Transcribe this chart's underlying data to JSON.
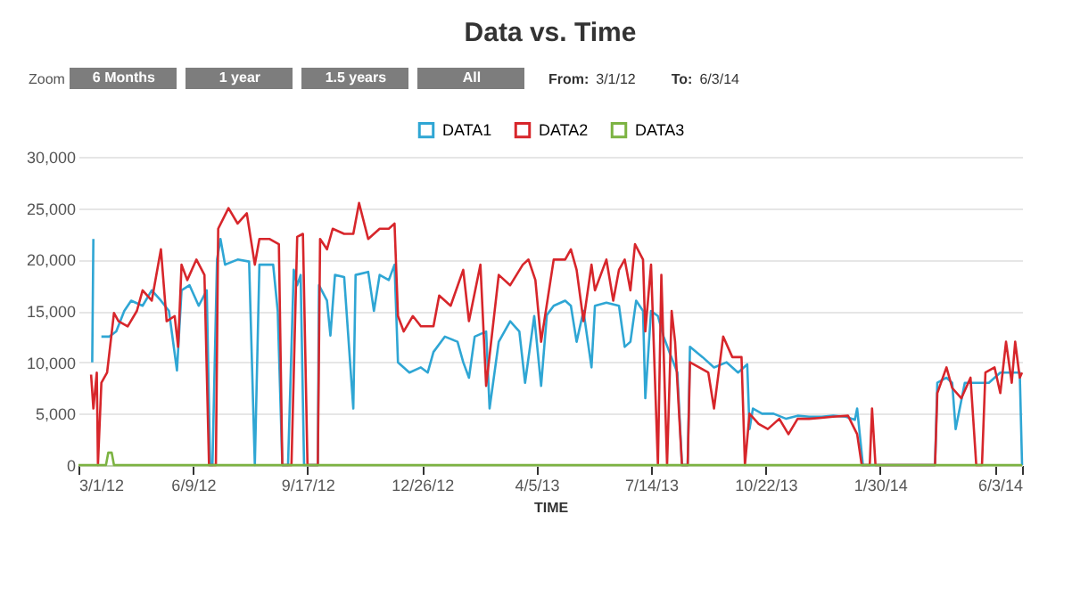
{
  "chart_data": {
    "type": "line",
    "title": "Data vs. Time",
    "xlabel": "TIME",
    "legend": "top",
    "grid": "y",
    "marker": "none",
    "line_style": "solid",
    "annotations": [
      "Zoom",
      "6 Months",
      "1 year",
      "1.5 years",
      "All",
      "From:",
      "3/1/12",
      "To:",
      "6/3/14"
    ],
    "xlim": [
      "2012-03-01",
      "2014-06-03"
    ],
    "xticks": [
      {
        "value": "2012-03-01",
        "label": "3/1/12"
      },
      {
        "value": "2012-06-09",
        "label": "6/9/12"
      },
      {
        "value": "2012-09-17",
        "label": "9/17/12"
      },
      {
        "value": "2012-12-26",
        "label": "12/26/12"
      },
      {
        "value": "2013-04-05",
        "label": "4/5/13"
      },
      {
        "value": "2013-07-14",
        "label": "7/14/13"
      },
      {
        "value": "2013-10-22",
        "label": "10/22/13"
      },
      {
        "value": "2014-01-30",
        "label": "1/30/14"
      },
      {
        "value": "2014-05-10",
        "label": null
      },
      {
        "value": "2014-06-03",
        "label": "6/3/14"
      }
    ],
    "ylim": [
      0,
      30000
    ],
    "yticks": [
      {
        "value": 0,
        "label": "0"
      },
      {
        "value": 5000,
        "label": "5,000"
      },
      {
        "value": 10000,
        "label": "10,000"
      },
      {
        "value": 15000,
        "label": "15,000"
      },
      {
        "value": 20000,
        "label": "20,000"
      },
      {
        "value": 25000,
        "label": "25,000"
      },
      {
        "value": 30000,
        "label": "30,000"
      }
    ],
    "series": [
      {
        "name": "DATA1",
        "color": "#2fa6d4",
        "x": [
          "2012-03-13",
          "2012-03-14",
          "2012-03-17",
          "2012-03-21",
          "2012-03-28",
          "2012-04-03",
          "2012-04-10",
          "2012-04-16",
          "2012-04-26",
          "2012-05-04",
          "2012-05-12",
          "2012-05-19",
          "2012-05-26",
          "2012-05-30",
          "2012-06-06",
          "2012-06-14",
          "2012-06-21",
          "2012-06-24",
          "2012-06-26",
          "2012-06-30",
          "2012-07-03",
          "2012-07-07",
          "2012-07-18",
          "2012-07-28",
          "2012-08-02",
          "2012-08-06",
          "2012-08-18",
          "2012-08-22",
          "2012-08-26",
          "2012-08-31",
          "2012-09-05",
          "2012-09-08",
          "2012-09-11",
          "2012-09-14",
          "2012-09-26",
          "2012-09-27",
          "2012-10-04",
          "2012-10-07",
          "2012-10-11",
          "2012-10-19",
          "2012-10-27",
          "2012-10-29",
          "2012-11-09",
          "2012-11-14",
          "2012-11-19",
          "2012-11-27",
          "2012-12-02",
          "2012-12-05",
          "2012-12-15",
          "2012-12-25",
          "2012-12-31",
          "2013-01-05",
          "2013-01-15",
          "2013-01-26",
          "2013-01-31",
          "2013-02-05",
          "2013-02-10",
          "2013-02-20",
          "2013-02-23",
          "2013-03-03",
          "2013-03-13",
          "2013-03-21",
          "2013-03-26",
          "2013-04-03",
          "2013-04-09",
          "2013-04-14",
          "2013-04-20",
          "2013-04-30",
          "2013-05-05",
          "2013-05-10",
          "2013-05-16",
          "2013-05-23",
          "2013-05-26",
          "2013-06-05",
          "2013-06-16",
          "2013-06-21",
          "2013-06-26",
          "2013-07-01",
          "2013-07-07",
          "2013-07-09",
          "2013-07-14",
          "2013-07-20",
          "2013-07-25",
          "2013-07-30",
          "2013-08-06",
          "2013-08-10",
          "2013-08-15",
          "2013-08-17",
          "2013-08-28",
          "2013-09-07",
          "2013-09-18",
          "2013-09-28",
          "2013-10-06",
          "2013-10-08",
          "2013-10-11",
          "2013-10-19",
          "2013-10-29",
          "2013-11-09",
          "2013-11-19",
          "2013-11-29",
          "2013-12-10",
          "2013-12-20",
          "2013-12-31",
          "2014-01-08",
          "2014-01-10",
          "2014-01-15",
          "2014-03-19",
          "2014-03-21",
          "2014-03-29",
          "2014-04-03",
          "2014-04-06",
          "2014-04-14",
          "2014-04-24",
          "2014-05-05",
          "2014-05-15",
          "2014-05-26",
          "2014-06-01",
          "2014-06-03"
        ],
        "values": [
          10000,
          22000,
          null,
          12500,
          12500,
          13000,
          15000,
          16000,
          15500,
          17000,
          16000,
          15000,
          9200,
          17000,
          17500,
          15500,
          17000,
          0,
          0,
          20000,
          22000,
          19500,
          20000,
          19800,
          0,
          19500,
          19500,
          15000,
          0,
          0,
          19000,
          17500,
          18500,
          0,
          0,
          17500,
          16000,
          12600,
          18500,
          18300,
          5500,
          18500,
          18800,
          15000,
          18500,
          18000,
          19500,
          10000,
          9000,
          9500,
          9000,
          11000,
          12500,
          12000,
          10000,
          8500,
          12500,
          13000,
          5500,
          12000,
          14000,
          13000,
          8000,
          14500,
          7700,
          14600,
          15500,
          16000,
          15500,
          12000,
          15000,
          9500,
          15500,
          15800,
          15500,
          11500,
          12000,
          16000,
          15000,
          6500,
          15000,
          14500,
          12500,
          11000,
          9000,
          0,
          0,
          11500,
          10500,
          9500,
          10000,
          9000,
          9800,
          3500,
          5500,
          5000,
          5000,
          4500,
          4800,
          4700,
          4700,
          4800,
          4700,
          4400,
          5500,
          0,
          0,
          8000,
          8500,
          8000,
          3500,
          8000,
          8000,
          8000,
          9000,
          9000,
          9000,
          0
        ]
      },
      {
        "name": "DATA2",
        "color": "#d7262b",
        "x": [
          "2012-03-12",
          "2012-03-14",
          "2012-03-17",
          "2012-03-18",
          "2012-03-21",
          "2012-03-26",
          "2012-04-01",
          "2012-04-05",
          "2012-04-13",
          "2012-04-21",
          "2012-04-26",
          "2012-05-04",
          "2012-05-12",
          "2012-05-17",
          "2012-05-24",
          "2012-05-27",
          "2012-05-30",
          "2012-06-04",
          "2012-06-12",
          "2012-06-19",
          "2012-06-23",
          "2012-06-29",
          "2012-07-01",
          "2012-07-10",
          "2012-07-18",
          "2012-07-26",
          "2012-08-02",
          "2012-08-06",
          "2012-08-15",
          "2012-08-23",
          "2012-08-26",
          "2012-09-03",
          "2012-09-08",
          "2012-09-13",
          "2012-09-17",
          "2012-09-26",
          "2012-09-28",
          "2012-10-04",
          "2012-10-09",
          "2012-10-19",
          "2012-10-27",
          "2012-11-01",
          "2012-11-09",
          "2012-11-19",
          "2012-11-27",
          "2012-12-02",
          "2012-12-05",
          "2012-12-10",
          "2012-12-18",
          "2012-12-25",
          "2013-01-05",
          "2013-01-10",
          "2013-01-20",
          "2013-01-31",
          "2013-02-05",
          "2013-02-15",
          "2013-02-20",
          "2013-03-03",
          "2013-03-13",
          "2013-03-24",
          "2013-03-29",
          "2013-04-04",
          "2013-04-09",
          "2013-04-20",
          "2013-04-30",
          "2013-05-05",
          "2013-05-10",
          "2013-05-16",
          "2013-05-23",
          "2013-05-26",
          "2013-06-05",
          "2013-06-11",
          "2013-06-16",
          "2013-06-21",
          "2013-06-26",
          "2013-06-30",
          "2013-07-07",
          "2013-07-09",
          "2013-07-14",
          "2013-07-20",
          "2013-07-23",
          "2013-07-28",
          "2013-08-01",
          "2013-08-04",
          "2013-08-10",
          "2013-08-15",
          "2013-08-17",
          "2013-08-25",
          "2013-09-02",
          "2013-09-07",
          "2013-09-15",
          "2013-09-23",
          "2013-10-01",
          "2013-10-04",
          "2013-10-08",
          "2013-10-16",
          "2013-10-24",
          "2013-11-03",
          "2013-11-11",
          "2013-11-19",
          "2013-11-29",
          "2013-12-10",
          "2013-12-20",
          "2014-01-02",
          "2014-01-10",
          "2014-01-14",
          "2014-01-21",
          "2014-01-23",
          "2014-01-26",
          "2014-03-19",
          "2014-03-21",
          "2014-03-29",
          "2014-04-03",
          "2014-04-11",
          "2014-04-19",
          "2014-04-24",
          "2014-04-29",
          "2014-05-02",
          "2014-05-10",
          "2014-05-15",
          "2014-05-20",
          "2014-05-25",
          "2014-05-28",
          "2014-06-01",
          "2014-06-03"
        ],
        "values": [
          8800,
          5500,
          9000,
          0,
          8000,
          9000,
          14800,
          14000,
          13500,
          15000,
          17000,
          16000,
          21000,
          14000,
          14500,
          11500,
          19500,
          18000,
          20000,
          18500,
          0,
          0,
          23000,
          25000,
          23500,
          24500,
          19500,
          22000,
          22000,
          21500,
          0,
          0,
          22200,
          22500,
          0,
          0,
          22000,
          21000,
          23000,
          22500,
          22500,
          25500,
          22000,
          23000,
          23000,
          23500,
          14500,
          13000,
          14500,
          13500,
          13500,
          16500,
          15500,
          19000,
          14000,
          19500,
          7700,
          18500,
          17500,
          19500,
          20000,
          18000,
          12000,
          20000,
          20000,
          21000,
          19000,
          14000,
          19500,
          17000,
          20000,
          16000,
          19000,
          20000,
          17000,
          21500,
          20000,
          13000,
          19500,
          0,
          18500,
          0,
          15000,
          12000,
          0,
          0,
          10000,
          9500,
          9000,
          5500,
          12500,
          10500,
          10500,
          0,
          5000,
          4000,
          3500,
          4500,
          3000,
          4500,
          4500,
          4600,
          4700,
          4800,
          3000,
          0,
          0,
          5500,
          0,
          0,
          7000,
          9500,
          7500,
          6500,
          8500,
          0,
          0,
          9000,
          9500,
          7000,
          12000,
          8000,
          12000,
          8500,
          9000
        ]
      },
      {
        "name": "DATA3",
        "color": "#7cb342",
        "x": [
          "2012-03-01",
          "2012-03-25",
          "2012-03-27",
          "2012-03-30",
          "2012-04-01",
          "2014-06-03"
        ],
        "values": [
          0,
          0,
          1200,
          1200,
          0,
          0
        ]
      }
    ]
  }
}
